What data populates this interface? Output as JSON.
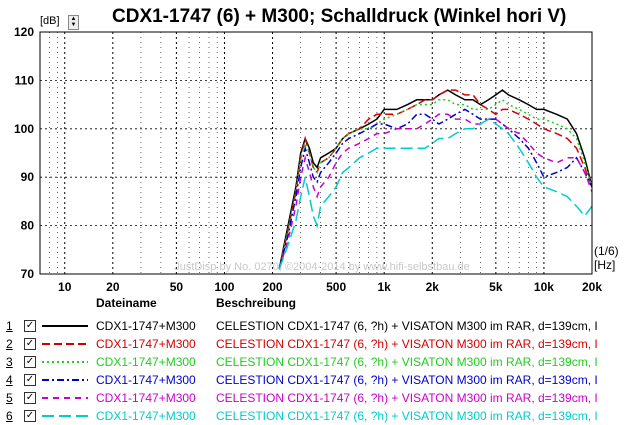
{
  "header": {
    "title": "CDX1-1747 (6) + M300; Schalldruck (Winkel hori V)",
    "unit_label": "[dB]"
  },
  "axis": {
    "x_unit": "[Hz]",
    "resolution": "(1/6)",
    "watermark": "JustDisp by No. 0270, ©2004-2014 by www.hifi-selbstbau.de"
  },
  "chart_data": {
    "type": "line",
    "title": "CDX1-1747 (6) + M300; Schalldruck (Winkel hori V)",
    "xlabel": "[Hz]",
    "ylabel": "[dB]",
    "x_scale": "log",
    "xlim": [
      7,
      20000
    ],
    "ylim": [
      70,
      120
    ],
    "grid": true,
    "x_ticks": [
      {
        "value": 10,
        "label": "10"
      },
      {
        "value": 20,
        "label": "20"
      },
      {
        "value": 50,
        "label": "50"
      },
      {
        "value": 100,
        "label": "100"
      },
      {
        "value": 200,
        "label": "200"
      },
      {
        "value": 500,
        "label": "500"
      },
      {
        "value": 1000,
        "label": "1k"
      },
      {
        "value": 2000,
        "label": "2k"
      },
      {
        "value": 5000,
        "label": "5k"
      },
      {
        "value": 10000,
        "label": "10k"
      },
      {
        "value": 20000,
        "label": "20k"
      }
    ],
    "y_ticks": [
      70,
      80,
      90,
      100,
      110,
      120
    ],
    "series": [
      {
        "name": "1",
        "color": "#000000",
        "dash": "solid",
        "x": [
          220,
          250,
          280,
          300,
          320,
          340,
          360,
          380,
          400,
          450,
          500,
          550,
          600,
          700,
          800,
          900,
          1000,
          1200,
          1400,
          1600,
          1800,
          2000,
          2200,
          2500,
          2800,
          3200,
          3600,
          4000,
          4500,
          5000,
          5500,
          6000,
          7000,
          8000,
          9000,
          10000,
          12000,
          14000,
          16000,
          18000,
          20000
        ],
        "y": [
          71,
          80,
          88,
          95,
          98,
          96,
          93,
          92,
          94,
          95,
          96,
          98,
          99,
          100,
          101,
          102,
          104,
          104,
          105,
          106,
          106,
          106,
          107,
          108,
          107,
          106,
          106,
          105,
          106,
          107,
          108,
          107,
          106,
          105,
          104,
          104,
          103,
          102,
          99,
          94,
          88
        ]
      },
      {
        "name": "2",
        "color": "#d40000",
        "dash": "dash",
        "x": [
          220,
          250,
          280,
          300,
          320,
          340,
          360,
          380,
          400,
          450,
          500,
          550,
          600,
          700,
          800,
          900,
          1000,
          1200,
          1400,
          1600,
          1800,
          2000,
          2200,
          2500,
          2800,
          3200,
          3600,
          4000,
          4500,
          5000,
          5500,
          6000,
          7000,
          8000,
          9000,
          10000,
          12000,
          14000,
          16000,
          18000,
          20000
        ],
        "y": [
          71,
          79,
          87,
          94,
          98,
          95,
          92,
          91,
          93,
          94,
          96,
          98,
          99,
          100,
          102,
          103,
          103,
          103,
          104,
          105,
          106,
          106,
          107,
          108,
          108,
          107,
          107,
          105,
          104,
          103,
          104,
          104,
          103,
          102,
          101,
          100,
          99,
          98,
          96,
          92,
          88
        ]
      },
      {
        "name": "3",
        "color": "#22cc22",
        "dash": "dot",
        "x": [
          220,
          250,
          280,
          300,
          320,
          340,
          360,
          380,
          400,
          450,
          500,
          550,
          600,
          700,
          800,
          900,
          1000,
          1200,
          1400,
          1600,
          1800,
          2000,
          2200,
          2500,
          2800,
          3200,
          3600,
          4000,
          4500,
          5000,
          5500,
          6000,
          7000,
          8000,
          9000,
          10000,
          12000,
          14000,
          16000,
          18000,
          20000
        ],
        "y": [
          71,
          79,
          87,
          94,
          97,
          95,
          92,
          91,
          93,
          94,
          96,
          98,
          99,
          100,
          100,
          101,
          102,
          103,
          104,
          105,
          105,
          105,
          106,
          106,
          105,
          105,
          104,
          104,
          104,
          105,
          106,
          105,
          104,
          103,
          102,
          102,
          101,
          100,
          98,
          93,
          88
        ]
      },
      {
        "name": "4",
        "color": "#0000cc",
        "dash": "dashdot",
        "x": [
          220,
          250,
          280,
          300,
          320,
          340,
          360,
          380,
          400,
          450,
          500,
          550,
          600,
          700,
          800,
          900,
          1000,
          1200,
          1400,
          1600,
          1800,
          2000,
          2200,
          2500,
          2800,
          3200,
          3600,
          4000,
          4500,
          5000,
          5500,
          6000,
          7000,
          8000,
          9000,
          10000,
          12000,
          14000,
          16000,
          18000,
          20000
        ],
        "y": [
          71,
          78,
          86,
          92,
          96,
          93,
          90,
          89,
          91,
          93,
          95,
          97,
          98,
          99,
          100,
          101,
          101,
          100,
          101,
          103,
          103,
          102,
          101,
          102,
          103,
          104,
          103,
          102,
          102,
          102,
          101,
          100,
          98,
          96,
          93,
          90,
          91,
          92,
          94,
          91,
          88
        ]
      },
      {
        "name": "5",
        "color": "#cc00cc",
        "dash": "dash2",
        "x": [
          220,
          250,
          280,
          300,
          320,
          340,
          360,
          380,
          400,
          450,
          500,
          550,
          600,
          700,
          800,
          900,
          1000,
          1200,
          1400,
          1600,
          1800,
          2000,
          2200,
          2500,
          2800,
          3200,
          3600,
          4000,
          4500,
          5000,
          5500,
          6000,
          7000,
          8000,
          9000,
          10000,
          12000,
          14000,
          16000,
          18000,
          20000
        ],
        "y": [
          71,
          77,
          84,
          90,
          94,
          91,
          88,
          86,
          88,
          90,
          93,
          95,
          96,
          97,
          98,
          99,
          99,
          100,
          100,
          100,
          101,
          102,
          103,
          103,
          102,
          102,
          101,
          101,
          102,
          102,
          101,
          100,
          99,
          97,
          95,
          94,
          93,
          94,
          94,
          91,
          87
        ]
      },
      {
        "name": "6",
        "color": "#00cccc",
        "dash": "longdash",
        "x": [
          220,
          250,
          280,
          300,
          320,
          340,
          360,
          380,
          400,
          450,
          500,
          550,
          600,
          700,
          800,
          900,
          1000,
          1200,
          1400,
          1600,
          1800,
          2000,
          2200,
          2500,
          2800,
          3200,
          3600,
          4000,
          4500,
          5000,
          5500,
          6000,
          7000,
          8000,
          9000,
          10000,
          12000,
          14000,
          16000,
          18000,
          20000
        ],
        "y": [
          71,
          76,
          81,
          86,
          90,
          86,
          82,
          80,
          84,
          86,
          88,
          91,
          92,
          94,
          95,
          96,
          96,
          96,
          96,
          96,
          96,
          97,
          98,
          98,
          99,
          100,
          100,
          101,
          102,
          101,
          100,
          99,
          96,
          93,
          90,
          88,
          87,
          86,
          84,
          82,
          84
        ]
      }
    ]
  },
  "legend": {
    "col_name": "Dateiname",
    "col_desc": "Beschreibung",
    "rows": [
      {
        "num": "1",
        "check": "✓",
        "name": "CDX1-1747+M300",
        "desc": "CELESTION CDX1-1747 (6, ?h) + VISATON M300 im RAR, d=139cm, I"
      },
      {
        "num": "2",
        "check": "✓",
        "name": "CDX1-1747+M300",
        "desc": "CELESTION CDX1-1747 (6, ?h) + VISATON M300 im RAR, d=139cm, I"
      },
      {
        "num": "3",
        "check": "✓",
        "name": "CDX1-1747+M300",
        "desc": "CELESTION CDX1-1747 (6, ?h) + VISATON M300 im RAR, d=139cm, I"
      },
      {
        "num": "4",
        "check": "✓",
        "name": "CDX1-1747+M300",
        "desc": "CELESTION CDX1-1747 (6, ?h) + VISATON M300 im RAR, d=139cm, I"
      },
      {
        "num": "5",
        "check": "✓",
        "name": "CDX1-1747+M300",
        "desc": "CELESTION CDX1-1747 (6, ?h) + VISATON M300 im RAR, d=139cm, I"
      },
      {
        "num": "6",
        "check": "✓",
        "name": "CDX1-1747+M300",
        "desc": "CELESTION CDX1-1747 (6, ?h) + VISATON M300 im RAR, d=139cm, I"
      }
    ]
  }
}
